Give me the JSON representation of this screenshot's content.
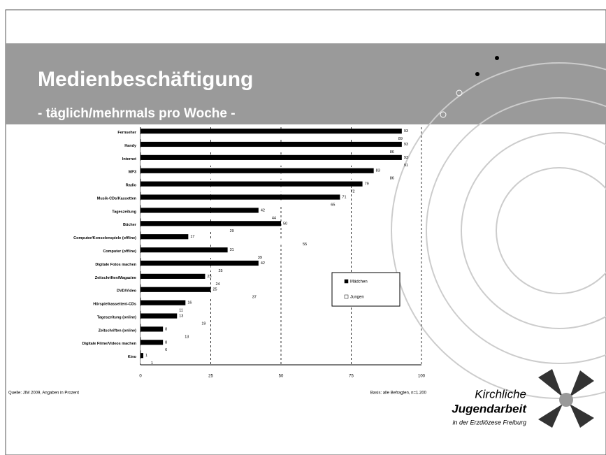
{
  "header": {
    "title": "Medienbeschäftigung",
    "subtitle": "- täglich/mehrmals pro Woche -"
  },
  "chart_data": {
    "type": "bar",
    "orientation": "horizontal",
    "categories": [
      "Fernseher",
      "Handy",
      "Internet",
      "MP3",
      "Radio",
      "Musik-CDs/Kassetten",
      "Tageszeitung",
      "Bücher",
      "Computer/Konsolenspiele (offline)",
      "Computer (offline)",
      "Digitale Fotos machen",
      "Zeitschriften/Magazine",
      "DVD/Video",
      "Hörspielkassetten/-CDs",
      "Tageszeitung (online)",
      "Zeitschriften (online)",
      "Digitale Filme/Videos machen",
      "Kino"
    ],
    "series": [
      {
        "name": "Mädchen",
        "color": "#000000",
        "values": [
          93,
          93,
          93,
          83,
          79,
          71,
          42,
          50,
          17,
          31,
          42,
          23,
          25,
          16,
          13,
          8,
          8,
          1
        ]
      },
      {
        "name": "Jungen",
        "color": "#ffffff",
        "values": [
          89,
          86,
          91,
          86,
          72,
          65,
          44,
          29,
          55,
          39,
          25,
          24,
          37,
          11,
          19,
          13,
          6,
          1
        ]
      }
    ],
    "xlim": [
      0,
      100
    ],
    "xticks": [
      0,
      25,
      50,
      75,
      100
    ],
    "grid": true,
    "legend": "right"
  },
  "footer": {
    "source": "Quelle: JIM 2009, Angaben in Prozent",
    "basis": "Basis: alle Befragten, n=1.200"
  },
  "logo": {
    "line1": "Kirchliche",
    "line2": "Jugendarbeit",
    "line3": "in der Erzdiözese Freiburg"
  }
}
